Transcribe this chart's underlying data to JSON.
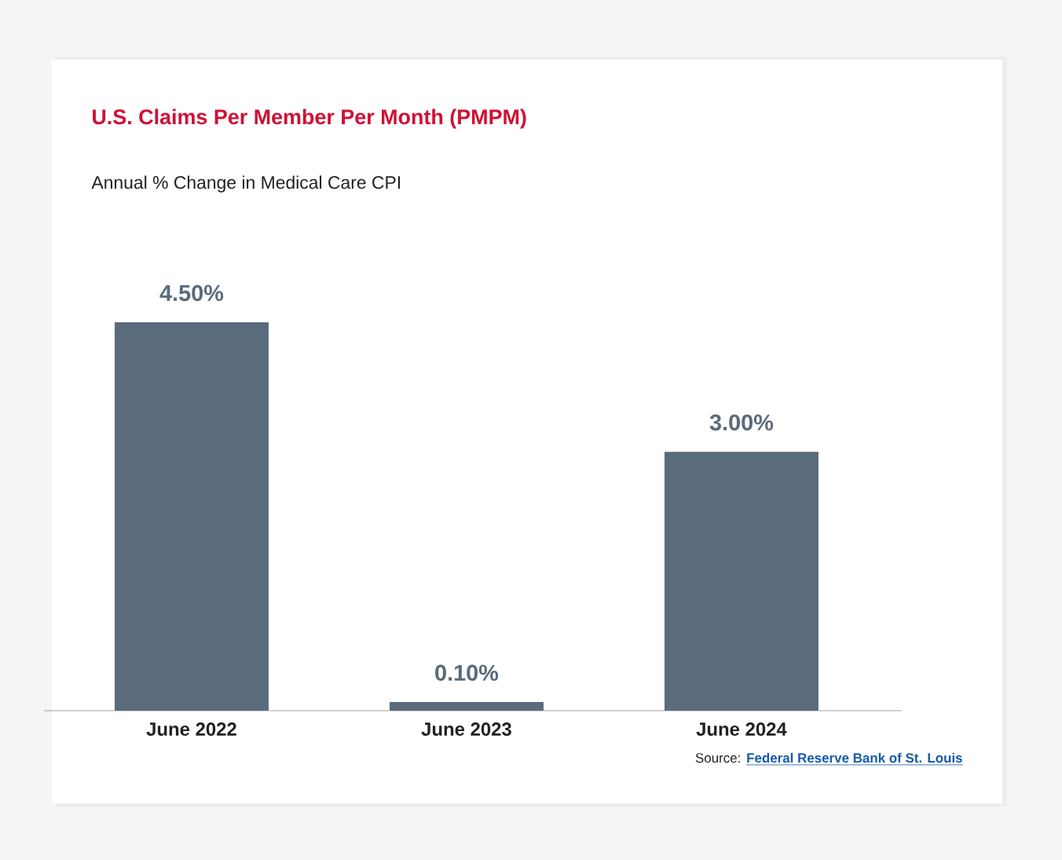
{
  "chart_data": {
    "type": "bar",
    "title": "U.S. Claims Per Member Per Month (PMPM)",
    "subtitle": "Annual % Change in Medical Care CPI",
    "categories": [
      "June 2022",
      "June 2023",
      "June 2024"
    ],
    "values": [
      4.5,
      0.1,
      3.0
    ],
    "value_labels": [
      "4.50%",
      "0.10%",
      "3.00%"
    ],
    "color": "#5a6b7b",
    "tick_labels": "x",
    "annotations": [
      "Source:",
      "Federal Reserve Bank of St. Louis"
    ]
  }
}
